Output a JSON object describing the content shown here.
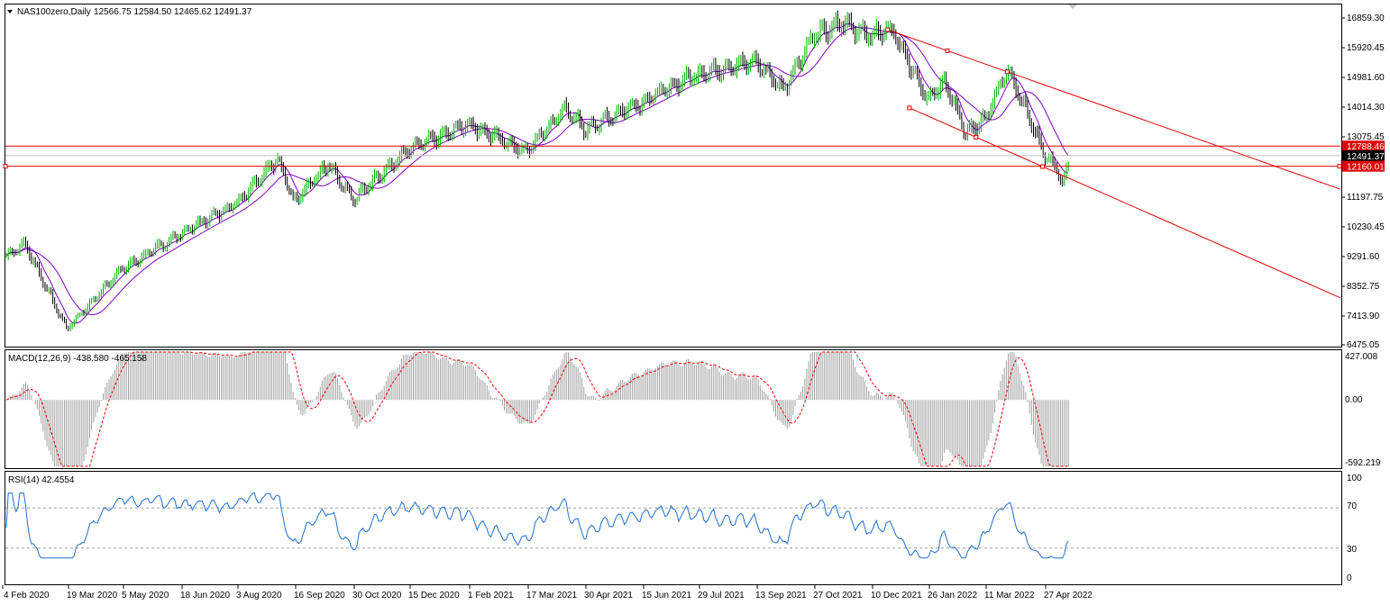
{
  "colors": {
    "background": "#ffffff",
    "grid_border": "#000000",
    "price_up": "#00b000",
    "price_down": "#000000",
    "ma": "#8000c0",
    "channel": "#e00000",
    "hline": "#e00000",
    "current_line": "#c0c0c0",
    "macd_hist": "#a0a0a0",
    "macd_signal": "#ff0000",
    "rsi": "#1e6fd0",
    "rsi_level": "#a0a0a0"
  },
  "chart_data": [
    {
      "type": "candlestick",
      "title": "NAS100zero,Daily",
      "ohlc_label": "12566.75 12584.50 12465.62 12491.37",
      "y_ticks": [
        "16859.30",
        "15920.45",
        "14981.60",
        "14014.30",
        "13075.45",
        "11197.75",
        "10230.45",
        "9291.60",
        "8352.75",
        "7413.90",
        "6475.05"
      ],
      "y_tick_values": [
        16859.3,
        15920.45,
        14981.6,
        14014.3,
        13075.45,
        11197.75,
        10230.45,
        9291.6,
        8352.75,
        7413.9,
        6475.05
      ],
      "ylim": [
        6475.05,
        16859.3
      ],
      "x_ticks": [
        "4 Feb 2020",
        "19 Mar 2020",
        "5 May 2020",
        "18 Jun 2020",
        "3 Aug 2020",
        "16 Sep 2020",
        "30 Oct 2020",
        "15 Dec 2020",
        "1 Feb 2021",
        "17 Mar 2021",
        "30 Apr 2021",
        "15 Jun 2021",
        "29 Jul 2021",
        "13 Sep 2021",
        "27 Oct 2021",
        "10 Dec 2021",
        "26 Jan 2022",
        "11 Mar 2022",
        "27 Apr 2022"
      ],
      "price_path": [
        [
          "4 Feb 2020",
          9200
        ],
        [
          "20 Feb 2020",
          9700
        ],
        [
          "19 Mar 2020",
          7000
        ],
        [
          "5 May 2020",
          8900
        ],
        [
          "18 Jun 2020",
          10000
        ],
        [
          "3 Aug 2020",
          11000
        ],
        [
          "3 Sep 2020",
          12400
        ],
        [
          "16 Sep 2020",
          11100
        ],
        [
          "12 Oct 2020",
          12200
        ],
        [
          "30 Oct 2020",
          11100
        ],
        [
          "15 Dec 2020",
          12700
        ],
        [
          "1 Feb 2021",
          13500
        ],
        [
          "17 Mar 2021",
          12600
        ],
        [
          "16 Apr 2021",
          14000
        ],
        [
          "30 Apr 2021",
          13300
        ],
        [
          "15 Jun 2021",
          14200
        ],
        [
          "29 Jul 2021",
          15100
        ],
        [
          "13 Sep 2021",
          15500
        ],
        [
          "4 Oct 2021",
          14600
        ],
        [
          "27 Oct 2021",
          16300
        ],
        [
          "19 Nov 2021",
          16700
        ],
        [
          "10 Dec 2021",
          16300
        ],
        [
          "28 Dec 2021",
          16500
        ],
        [
          "26 Jan 2022",
          14300
        ],
        [
          "9 Feb 2022",
          14800
        ],
        [
          "24 Feb 2022",
          13200
        ],
        [
          "11 Mar 2022",
          13600
        ],
        [
          "29 Mar 2022",
          15200
        ],
        [
          "11 Apr 2022",
          14100
        ],
        [
          "27 Apr 2022",
          12600
        ],
        [
          "9 May 2022",
          12000
        ],
        [
          "12 May 2022",
          11600
        ],
        [
          "18 May 2022",
          12491.37
        ]
      ],
      "horizontal_lines": [
        12788.46,
        12160.01
      ],
      "current_price": 12491.37,
      "price_labels": [
        "12788.46",
        "12491.37",
        "12160.01"
      ],
      "trend_channel": {
        "upper": {
          "start": [
            "24 Dec 2021",
            16490
          ],
          "end": [
            "29 Mar 2022",
            15160
          ]
        },
        "lower": {
          "start": [
            "11 Jan 2022",
            13990
          ],
          "end": [
            "26 Apr 2022",
            12150
          ]
        }
      }
    },
    {
      "type": "histogram",
      "title": "MACD(12,26,9) -438.580 -465.158",
      "y_ticks": [
        "427.008",
        "0.00",
        "-592.219"
      ],
      "y_tick_values": [
        427.008,
        0,
        -592.219
      ],
      "ylim": [
        -592.219,
        427.008
      ]
    },
    {
      "type": "line",
      "title": "RSI(14) 42.4554",
      "y_ticks": [
        "100",
        "70",
        "30",
        "0"
      ],
      "y_tick_values": [
        100,
        70,
        30,
        0
      ],
      "levels": [
        70,
        30
      ],
      "ylim": [
        0,
        100
      ]
    }
  ]
}
